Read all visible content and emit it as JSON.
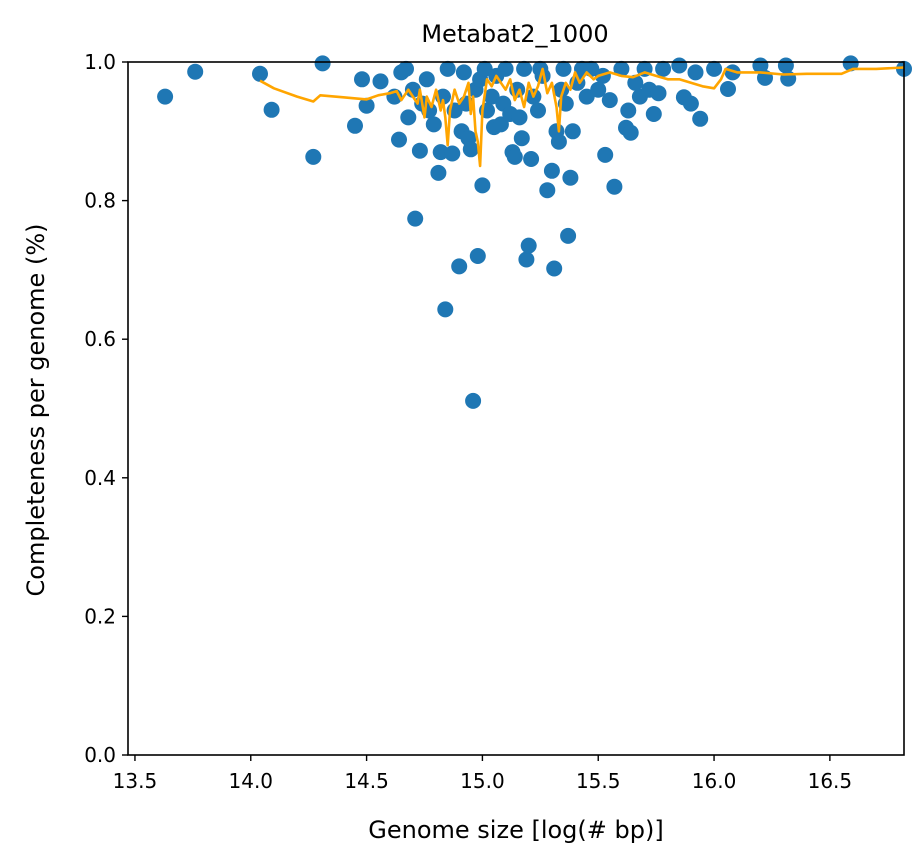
{
  "chart_data": {
    "type": "scatter",
    "title": "Metabat2_1000",
    "xlabel": "Genome size [log(# bp)]",
    "ylabel": "Completeness per genome (%)",
    "xlim": [
      13.47,
      16.82
    ],
    "ylim": [
      0.0,
      1.0
    ],
    "xticks": [
      13.5,
      14.0,
      14.5,
      15.0,
      15.5,
      16.0,
      16.5
    ],
    "xtick_labels": [
      "13.5",
      "14.0",
      "14.5",
      "15.0",
      "15.5",
      "16.0",
      "16.5"
    ],
    "yticks": [
      0.0,
      0.2,
      0.4,
      0.6,
      0.8,
      1.0
    ],
    "ytick_labels": [
      "0.0",
      "0.2",
      "0.4",
      "0.6",
      "0.8",
      "1.0"
    ],
    "grid": false,
    "colors": {
      "scatter": "#1f77b4",
      "line": "#ffa500"
    },
    "series": [
      {
        "kind": "scatter",
        "points": [
          [
            13.63,
            0.95
          ],
          [
            13.76,
            0.986
          ],
          [
            14.04,
            0.983
          ],
          [
            14.09,
            0.931
          ],
          [
            14.27,
            0.863
          ],
          [
            14.31,
            0.998
          ],
          [
            14.45,
            0.908
          ],
          [
            14.48,
            0.975
          ],
          [
            14.5,
            0.937
          ],
          [
            14.56,
            0.972
          ],
          [
            14.62,
            0.95
          ],
          [
            14.64,
            0.888
          ],
          [
            14.65,
            0.985
          ],
          [
            14.67,
            0.99
          ],
          [
            14.68,
            0.92
          ],
          [
            14.7,
            0.96
          ],
          [
            14.71,
            0.774
          ],
          [
            14.73,
            0.872
          ],
          [
            14.74,
            0.94
          ],
          [
            14.76,
            0.975
          ],
          [
            14.77,
            0.93
          ],
          [
            14.79,
            0.91
          ],
          [
            14.81,
            0.84
          ],
          [
            14.82,
            0.87
          ],
          [
            14.83,
            0.95
          ],
          [
            14.84,
            0.643
          ],
          [
            14.85,
            0.99
          ],
          [
            14.87,
            0.868
          ],
          [
            14.88,
            0.93
          ],
          [
            14.9,
            0.705
          ],
          [
            14.91,
            0.9
          ],
          [
            14.92,
            0.985
          ],
          [
            14.93,
            0.94
          ],
          [
            14.94,
            0.89
          ],
          [
            14.95,
            0.874
          ],
          [
            14.96,
            0.511
          ],
          [
            14.97,
            0.96
          ],
          [
            14.98,
            0.72
          ],
          [
            14.99,
            0.975
          ],
          [
            15.0,
            0.822
          ],
          [
            15.01,
            0.99
          ],
          [
            15.02,
            0.93
          ],
          [
            15.04,
            0.95
          ],
          [
            15.05,
            0.906
          ],
          [
            15.06,
            0.98
          ],
          [
            15.08,
            0.91
          ],
          [
            15.09,
            0.94
          ],
          [
            15.1,
            0.99
          ],
          [
            15.12,
            0.925
          ],
          [
            15.13,
            0.87
          ],
          [
            15.14,
            0.863
          ],
          [
            15.15,
            0.96
          ],
          [
            15.16,
            0.92
          ],
          [
            15.17,
            0.89
          ],
          [
            15.18,
            0.99
          ],
          [
            15.19,
            0.715
          ],
          [
            15.2,
            0.735
          ],
          [
            15.21,
            0.86
          ],
          [
            15.22,
            0.95
          ],
          [
            15.24,
            0.93
          ],
          [
            15.25,
            0.99
          ],
          [
            15.26,
            0.98
          ],
          [
            15.28,
            0.815
          ],
          [
            15.3,
            0.843
          ],
          [
            15.31,
            0.702
          ],
          [
            15.32,
            0.9
          ],
          [
            15.33,
            0.885
          ],
          [
            15.34,
            0.96
          ],
          [
            15.35,
            0.99
          ],
          [
            15.36,
            0.94
          ],
          [
            15.37,
            0.749
          ],
          [
            15.38,
            0.833
          ],
          [
            15.39,
            0.9
          ],
          [
            15.41,
            0.97
          ],
          [
            15.43,
            0.99
          ],
          [
            15.45,
            0.95
          ],
          [
            15.47,
            0.99
          ],
          [
            15.5,
            0.96
          ],
          [
            15.52,
            0.98
          ],
          [
            15.53,
            0.866
          ],
          [
            15.55,
            0.945
          ],
          [
            15.57,
            0.82
          ],
          [
            15.6,
            0.99
          ],
          [
            15.62,
            0.905
          ],
          [
            15.63,
            0.93
          ],
          [
            15.64,
            0.898
          ],
          [
            15.66,
            0.97
          ],
          [
            15.68,
            0.95
          ],
          [
            15.7,
            0.99
          ],
          [
            15.72,
            0.96
          ],
          [
            15.74,
            0.925
          ],
          [
            15.76,
            0.955
          ],
          [
            15.78,
            0.99
          ],
          [
            15.85,
            0.995
          ],
          [
            15.87,
            0.949
          ],
          [
            15.9,
            0.94
          ],
          [
            15.92,
            0.985
          ],
          [
            15.94,
            0.918
          ],
          [
            16.0,
            0.99
          ],
          [
            16.06,
            0.961
          ],
          [
            16.08,
            0.985
          ],
          [
            16.2,
            0.995
          ],
          [
            16.22,
            0.977
          ],
          [
            16.31,
            0.995
          ],
          [
            16.32,
            0.976
          ],
          [
            16.59,
            0.998
          ],
          [
            16.82,
            0.99
          ]
        ]
      },
      {
        "kind": "line",
        "points": [
          [
            14.04,
            0.973
          ],
          [
            14.1,
            0.962
          ],
          [
            14.2,
            0.95
          ],
          [
            14.27,
            0.943
          ],
          [
            14.3,
            0.952
          ],
          [
            14.4,
            0.949
          ],
          [
            14.5,
            0.946
          ],
          [
            14.55,
            0.952
          ],
          [
            14.6,
            0.955
          ],
          [
            14.63,
            0.958
          ],
          [
            14.65,
            0.945
          ],
          [
            14.68,
            0.96
          ],
          [
            14.7,
            0.95
          ],
          [
            14.72,
            0.94
          ],
          [
            14.73,
            0.96
          ],
          [
            14.75,
            0.92
          ],
          [
            14.76,
            0.95
          ],
          [
            14.78,
            0.935
          ],
          [
            14.8,
            0.96
          ],
          [
            14.82,
            0.93
          ],
          [
            14.83,
            0.945
          ],
          [
            14.84,
            0.92
          ],
          [
            14.85,
            0.88
          ],
          [
            14.86,
            0.93
          ],
          [
            14.88,
            0.96
          ],
          [
            14.9,
            0.94
          ],
          [
            14.92,
            0.95
          ],
          [
            14.94,
            0.97
          ],
          [
            14.95,
            0.925
          ],
          [
            14.96,
            0.95
          ],
          [
            14.97,
            0.9
          ],
          [
            14.98,
            0.885
          ],
          [
            14.99,
            0.85
          ],
          [
            15.0,
            0.93
          ],
          [
            15.02,
            0.975
          ],
          [
            15.04,
            0.965
          ],
          [
            15.06,
            0.98
          ],
          [
            15.08,
            0.97
          ],
          [
            15.1,
            0.96
          ],
          [
            15.12,
            0.975
          ],
          [
            15.14,
            0.945
          ],
          [
            15.16,
            0.96
          ],
          [
            15.18,
            0.935
          ],
          [
            15.2,
            0.97
          ],
          [
            15.22,
            0.95
          ],
          [
            15.24,
            0.965
          ],
          [
            15.26,
            0.99
          ],
          [
            15.28,
            0.955
          ],
          [
            15.3,
            0.97
          ],
          [
            15.32,
            0.935
          ],
          [
            15.33,
            0.9
          ],
          [
            15.34,
            0.95
          ],
          [
            15.36,
            0.97
          ],
          [
            15.38,
            0.96
          ],
          [
            15.4,
            0.985
          ],
          [
            15.42,
            0.97
          ],
          [
            15.45,
            0.985
          ],
          [
            15.48,
            0.975
          ],
          [
            15.5,
            0.98
          ],
          [
            15.55,
            0.985
          ],
          [
            15.6,
            0.98
          ],
          [
            15.65,
            0.978
          ],
          [
            15.7,
            0.985
          ],
          [
            15.75,
            0.98
          ],
          [
            15.8,
            0.975
          ],
          [
            15.85,
            0.975
          ],
          [
            15.9,
            0.97
          ],
          [
            15.95,
            0.965
          ],
          [
            16.0,
            0.962
          ],
          [
            16.03,
            0.975
          ],
          [
            16.05,
            0.99
          ],
          [
            16.1,
            0.985
          ],
          [
            16.2,
            0.985
          ],
          [
            16.3,
            0.982
          ],
          [
            16.4,
            0.983
          ],
          [
            16.55,
            0.983
          ],
          [
            16.6,
            0.99
          ],
          [
            16.7,
            0.99
          ],
          [
            16.82,
            0.992
          ]
        ]
      }
    ]
  }
}
